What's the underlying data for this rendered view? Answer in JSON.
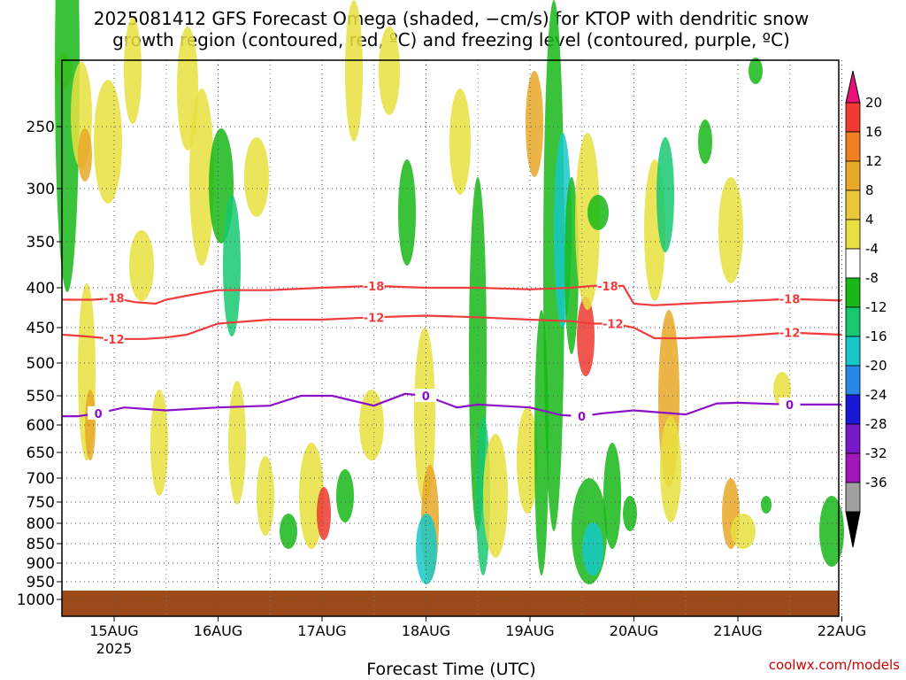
{
  "title": {
    "line1": "2025081412 GFS Forecast Omega (shaded, −cm/s) for KTOP with dendritic snow",
    "line2": "growth region (contoured, red, ºC) and freezing level (contoured, purple, ºC)"
  },
  "credit": "coolwx.com/models",
  "chart_data": {
    "type": "heatmap",
    "title": "2025081412 GFS Forecast Omega (shaded, −cm/s) for KTOP with dendritic snow growth region (contoured, red, ºC) and freezing level (contoured, purple, ºC)",
    "xlabel": "Forecast Time (UTC)",
    "ylabel": "",
    "x_ticks": [
      "15AUG",
      "16AUG",
      "17AUG",
      "18AUG",
      "19AUG",
      "20AUG",
      "21AUG",
      "22AUG"
    ],
    "x_tick_sublabel": {
      "tick": "15AUG",
      "text": "2025"
    },
    "xlim": [
      "2025-08-14 12Z",
      "2025-08-22 00Z"
    ],
    "y_ticks": [
      250,
      300,
      350,
      400,
      450,
      500,
      550,
      600,
      650,
      700,
      750,
      800,
      850,
      900,
      950,
      1000
    ],
    "ylim": [
      1000,
      200
    ],
    "grid": true,
    "colorbar": {
      "labels": [
        20,
        16,
        12,
        8,
        4,
        -4,
        -8,
        -12,
        -16,
        -20,
        -24,
        -28,
        -32,
        -36
      ],
      "colors": [
        "#e8107a",
        "#f03a30",
        "#f08020",
        "#e8a828",
        "#e8c838",
        "#e8e040",
        "#ffffff",
        "#18b818",
        "#18c870",
        "#18c8c8",
        "#2888e8",
        "#1818d8",
        "#7818c8",
        "#a018b8",
        "#a0a0a0",
        "#000000"
      ]
    },
    "contours": [
      {
        "name": "-18",
        "color": "#f03c3c",
        "x": [
          0,
          0.3,
          0.5,
          0.7,
          0.9,
          1.0,
          1.2,
          1.5,
          2.0,
          2.5,
          3.0,
          3.5,
          4.0,
          4.5,
          4.9,
          5.1,
          5.25,
          5.4,
          5.5,
          5.7,
          6.0,
          6.5,
          7.0,
          7.5
        ],
        "y": [
          415,
          415,
          413,
          418,
          420,
          415,
          410,
          403,
          403,
          400,
          398,
          400,
          400,
          402,
          400,
          398,
          398,
          398,
          420,
          422,
          420,
          417,
          414,
          416
        ]
      },
      {
        "name": "-12",
        "color": "#f03c3c",
        "x": [
          0,
          0.2,
          0.5,
          0.8,
          1.0,
          1.2,
          1.5,
          2.0,
          2.5,
          3.0,
          3.5,
          4.0,
          4.5,
          4.9,
          5.1,
          5.3,
          5.5,
          5.7,
          6.0,
          6.5,
          7.0,
          7.5
        ],
        "y": [
          460,
          462,
          466,
          466,
          464,
          460,
          445,
          440,
          440,
          437,
          435,
          437,
          440,
          442,
          445,
          445,
          450,
          465,
          465,
          462,
          457,
          460
        ]
      },
      {
        "name": "0",
        "color": "#8c10c8",
        "x": [
          0,
          0.15,
          0.35,
          0.6,
          1.0,
          1.5,
          2.0,
          2.3,
          2.6,
          3.0,
          3.3,
          3.5,
          3.8,
          4.0,
          4.2,
          4.5,
          4.8,
          5.0,
          5.2,
          5.5,
          6.0,
          6.3,
          6.5,
          7.0,
          7.5
        ],
        "y": [
          585,
          585,
          580,
          570,
          575,
          570,
          567,
          550,
          550,
          567,
          547,
          550,
          570,
          565,
          567,
          570,
          583,
          585,
          580,
          575,
          582,
          563,
          562,
          565,
          565
        ]
      }
    ]
  }
}
